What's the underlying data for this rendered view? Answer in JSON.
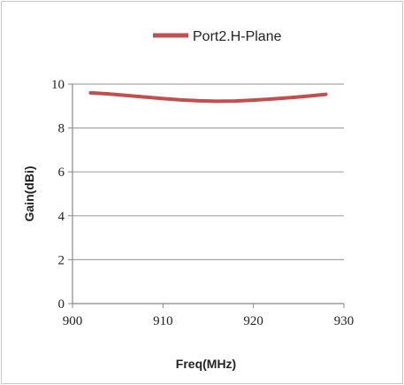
{
  "chart_data": {
    "type": "line",
    "xlabel": "Freq(MHz)",
    "ylabel": "Gain(dBi)",
    "xlim": [
      900,
      930
    ],
    "ylim": [
      0,
      10
    ],
    "x_ticks": [
      "900",
      "910",
      "920",
      "930"
    ],
    "y_ticks": [
      "0",
      "2",
      "4",
      "6",
      "8",
      "10"
    ],
    "grid": "horizontal",
    "legend_position": "top",
    "series": [
      {
        "name": "Port2.H-Plane",
        "color": "#c0504d",
        "x": [
          902,
          904,
          906,
          908,
          910,
          912,
          914,
          916,
          918,
          920,
          922,
          924,
          926,
          928
        ],
        "y": [
          9.6,
          9.55,
          9.48,
          9.41,
          9.34,
          9.28,
          9.24,
          9.22,
          9.23,
          9.27,
          9.32,
          9.38,
          9.45,
          9.53
        ]
      }
    ]
  }
}
